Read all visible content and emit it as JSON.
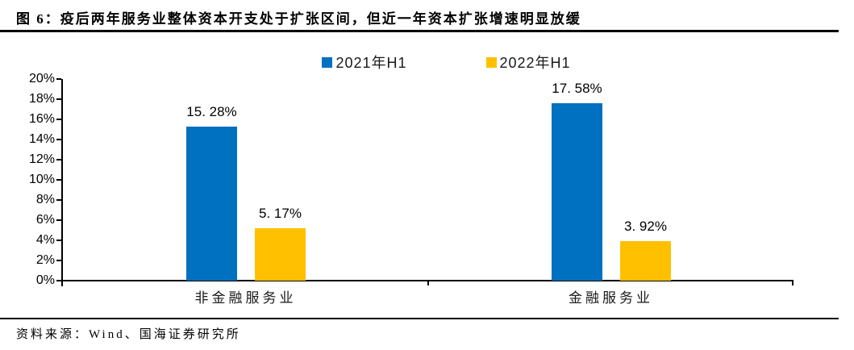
{
  "figure": {
    "title": "图 6：疫后两年服务业整体资本开支处于扩张区间，但近一年资本扩张增速明显放缓",
    "source": "资料来源：Wind、国海证券研究所"
  },
  "chart_data": {
    "type": "bar",
    "title": "疫后两年服务业整体资本开支处于扩张区间，但近一年资本扩张增速明显放缓",
    "categories": [
      "非金融服务业",
      "金融服务业"
    ],
    "series": [
      {
        "name": "2021年H1",
        "color": "#0070C0",
        "values": [
          15.28,
          17.58
        ],
        "value_labels": [
          "15. 28%",
          "17. 58%"
        ]
      },
      {
        "name": "2022年H1",
        "color": "#FFC000",
        "values": [
          5.17,
          3.92
        ],
        "value_labels": [
          "5. 17%",
          "3. 92%"
        ]
      }
    ],
    "xlabel": "",
    "ylabel": "",
    "ylim": [
      0,
      20
    ],
    "y_tick_labels": [
      "0%",
      "2%",
      "4%",
      "6%",
      "8%",
      "10%",
      "12%",
      "14%",
      "16%",
      "18%",
      "20%"
    ],
    "grid": false,
    "legend_position": "top-center"
  }
}
